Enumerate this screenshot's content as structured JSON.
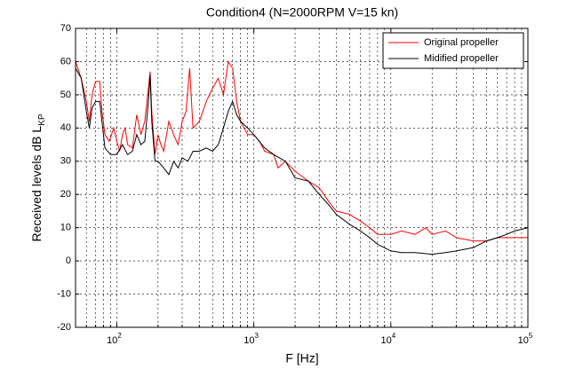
{
  "chart_data": {
    "type": "line",
    "title": "Condition4 (N=2000RPM V=15 kn)",
    "xlabel": "F [Hz]",
    "ylabel": "Received levels dB L_KP",
    "xscale": "log",
    "xlim": [
      50,
      100000
    ],
    "xticks": [
      {
        "value": 100,
        "label": "10^2"
      },
      {
        "value": 1000,
        "label": "10^3"
      },
      {
        "value": 10000,
        "label": "10^4"
      },
      {
        "value": 100000,
        "label": "10^5"
      }
    ],
    "ylim": [
      -20,
      70
    ],
    "yticks": [
      -20,
      -10,
      0,
      10,
      20,
      30,
      40,
      50,
      60,
      70
    ],
    "grid": true,
    "legend": "upper right",
    "series": [
      {
        "name": "Original propeller",
        "color": "#ff0000",
        "x": [
          50,
          55,
          60,
          63,
          66,
          70,
          75,
          78,
          82,
          88,
          95,
          100,
          105,
          110,
          115,
          120,
          130,
          140,
          150,
          160,
          170,
          175,
          180,
          190,
          200,
          210,
          220,
          240,
          260,
          280,
          300,
          320,
          340,
          360,
          400,
          450,
          500,
          550,
          600,
          650,
          700,
          750,
          800,
          900,
          1000,
          1100,
          1200,
          1400,
          1500,
          1700,
          2000,
          2500,
          3000,
          3500,
          4000,
          5000,
          6000,
          7000,
          8000,
          10000,
          12000,
          15000,
          18000,
          20000,
          25000,
          30000,
          40000,
          50000,
          60000,
          80000,
          100000
        ],
        "values": [
          60,
          55,
          48,
          42,
          50,
          54,
          54,
          45,
          38,
          36,
          40,
          36,
          33,
          38,
          40,
          35,
          34,
          44,
          38,
          42,
          52,
          57,
          45,
          32,
          38,
          35,
          33,
          42,
          38,
          35,
          42,
          45,
          58,
          40,
          42,
          48,
          52,
          55,
          50,
          60,
          58,
          48,
          42,
          38,
          38,
          36,
          33,
          32,
          28,
          30,
          27,
          24,
          22,
          18,
          15,
          14,
          12,
          10,
          8,
          8,
          9,
          8,
          10,
          8,
          9,
          7,
          6,
          6,
          7,
          7,
          7
        ]
      },
      {
        "name": "Midified propeller",
        "color": "#000000",
        "x": [
          50,
          55,
          60,
          63,
          66,
          70,
          75,
          82,
          90,
          100,
          110,
          120,
          130,
          140,
          150,
          160,
          170,
          175,
          180,
          190,
          200,
          220,
          240,
          260,
          280,
          300,
          330,
          360,
          400,
          450,
          500,
          550,
          600,
          650,
          700,
          750,
          800,
          900,
          1000,
          1200,
          1400,
          1700,
          2000,
          2500,
          3000,
          3500,
          4000,
          5000,
          6000,
          7000,
          8000,
          10000,
          12000,
          15000,
          20000,
          25000,
          30000,
          40000,
          50000,
          60000,
          70000,
          80000,
          100000
        ],
        "values": [
          58,
          55,
          45,
          40,
          46,
          48,
          48,
          34,
          32,
          32,
          35,
          32,
          33,
          38,
          35,
          36,
          48,
          56,
          42,
          30,
          30,
          28,
          26,
          30,
          28,
          31,
          30,
          33,
          33,
          34,
          33,
          35,
          40,
          45,
          48,
          44,
          42,
          40,
          38,
          34,
          32,
          30,
          25,
          24,
          20,
          17,
          14,
          11,
          9,
          7,
          5,
          3,
          2.5,
          2.5,
          2,
          2.5,
          3,
          4,
          6,
          7,
          8,
          9,
          10
        ]
      }
    ]
  }
}
